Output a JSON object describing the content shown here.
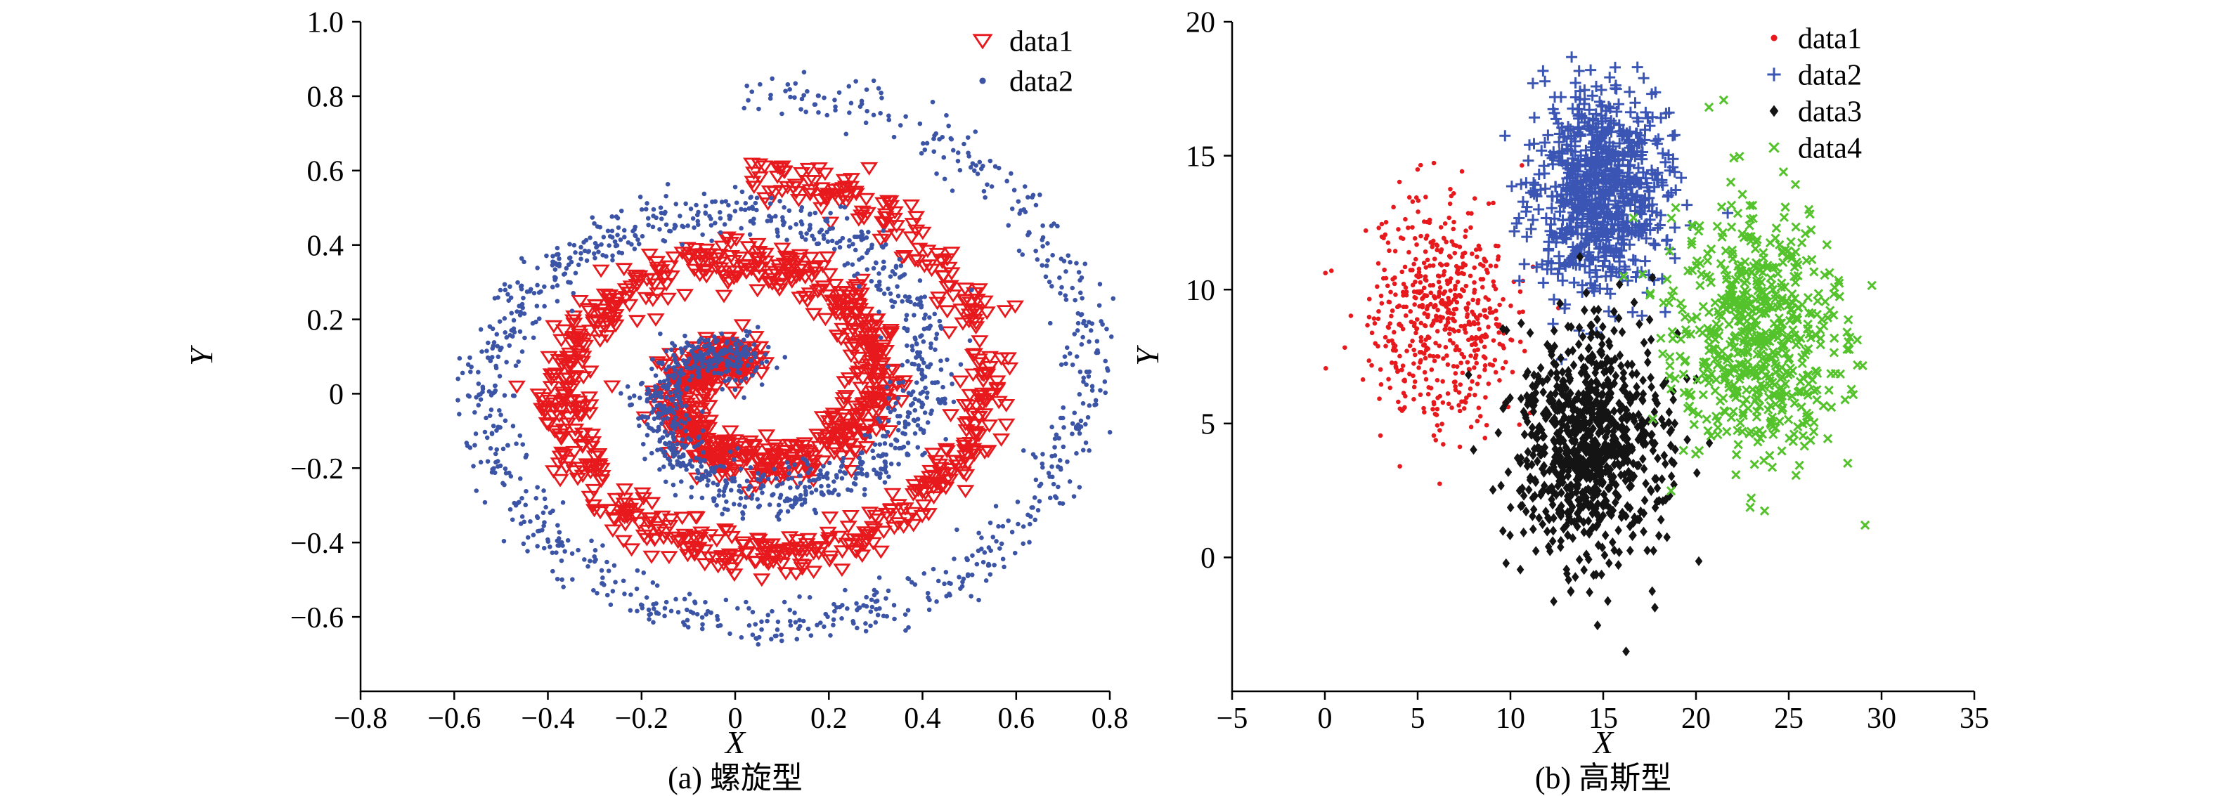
{
  "figure": {
    "background_color": "#ffffff",
    "description": "Two scatter plots: (a) two interleaved spiral clusters, (b) four Gaussian clusters"
  },
  "chart_data": [
    {
      "id": "spiral-plot",
      "type": "scatter",
      "caption": "(a) 螺旋型",
      "xlabel": "X",
      "ylabel": "Y",
      "xlim": [
        -0.8,
        0.8
      ],
      "ylim": [
        -0.8,
        1.0
      ],
      "xtick_values": [
        -0.8,
        -0.6,
        -0.4,
        -0.2,
        0,
        0.2,
        0.4,
        0.6,
        0.8
      ],
      "xtick_labels": [
        "−0.8",
        "−0.6",
        "−0.4",
        "−0.2",
        "0",
        "0.2",
        "0.4",
        "0.6",
        "0.8"
      ],
      "ytick_values": [
        1.0,
        0.8,
        0.6,
        0.4,
        0.2,
        0,
        -0.2,
        -0.4,
        -0.6
      ],
      "ytick_labels": [
        "1.0",
        "0.8",
        "0.6",
        "0.4",
        "0.2",
        "0",
        "−0.2",
        "−0.4",
        "−0.6"
      ],
      "grid": false,
      "legend_position": "inside-top-right",
      "series": [
        {
          "name": "data1",
          "marker": "triangle-down-open",
          "color": "#e7191d",
          "n": 1300,
          "size": 10,
          "generator": {
            "kind": "spiral",
            "cx": 0.03,
            "cy": 0.02,
            "r0": 0.05,
            "r1": 0.56,
            "turns": 2.0,
            "theta_end_deg": 90,
            "r_exp": 0.85,
            "noise": 0.03,
            "seed": 101
          }
        },
        {
          "name": "data2",
          "marker": "dot",
          "color": "#3b54a5",
          "n": 1850,
          "size": 6.5,
          "generator": {
            "kind": "spiral",
            "cx": 0.03,
            "cy": 0.02,
            "r0": 0.05,
            "r1": 0.8,
            "turns": 2.0,
            "theta_end_deg": 90,
            "r_exp": 0.85,
            "noise": 0.033,
            "seed": 202
          }
        }
      ]
    },
    {
      "id": "gaussian-plot",
      "type": "scatter",
      "caption": "(b) 高斯型",
      "xlabel": "X",
      "ylabel": "Y",
      "xlim": [
        -5,
        35
      ],
      "ylim": [
        -5,
        20
      ],
      "xtick_values": [
        -5,
        0,
        5,
        10,
        15,
        20,
        25,
        30,
        35
      ],
      "xtick_labels": [
        "−5",
        "0",
        "5",
        "10",
        "15",
        "20",
        "25",
        "30",
        "35"
      ],
      "ytick_values": [
        20,
        15,
        10,
        5,
        0
      ],
      "ytick_labels": [
        "20",
        "15",
        "10",
        "5",
        "0"
      ],
      "grid": false,
      "legend_position": "inside-top-right",
      "series": [
        {
          "name": "data1",
          "marker": "dot",
          "color": "#e7191d",
          "n": 560,
          "size": 6.5,
          "generator": {
            "kind": "gaussian",
            "cx": 6.3,
            "cy": 9.0,
            "sx": 2.0,
            "sy": 2.1,
            "seed": 301
          }
        },
        {
          "name": "data2",
          "marker": "plus",
          "color": "#3a55b4",
          "n": 760,
          "size": 8,
          "generator": {
            "kind": "gaussian",
            "cx": 15.0,
            "cy": 13.6,
            "sx": 1.8,
            "sy": 1.9,
            "seed": 302
          }
        },
        {
          "name": "data3",
          "marker": "diamond-filled",
          "color": "#141414",
          "n": 850,
          "size": 7,
          "generator": {
            "kind": "gaussian",
            "cx": 14.3,
            "cy": 4.3,
            "sx": 1.9,
            "sy": 2.2,
            "seed": 303
          }
        },
        {
          "name": "data4",
          "marker": "x",
          "color": "#53c22b",
          "n": 620,
          "size": 7.5,
          "generator": {
            "kind": "gaussian",
            "cx": 23.3,
            "cy": 8.3,
            "sx": 2.2,
            "sy": 2.3,
            "seed": 304
          }
        }
      ]
    }
  ]
}
